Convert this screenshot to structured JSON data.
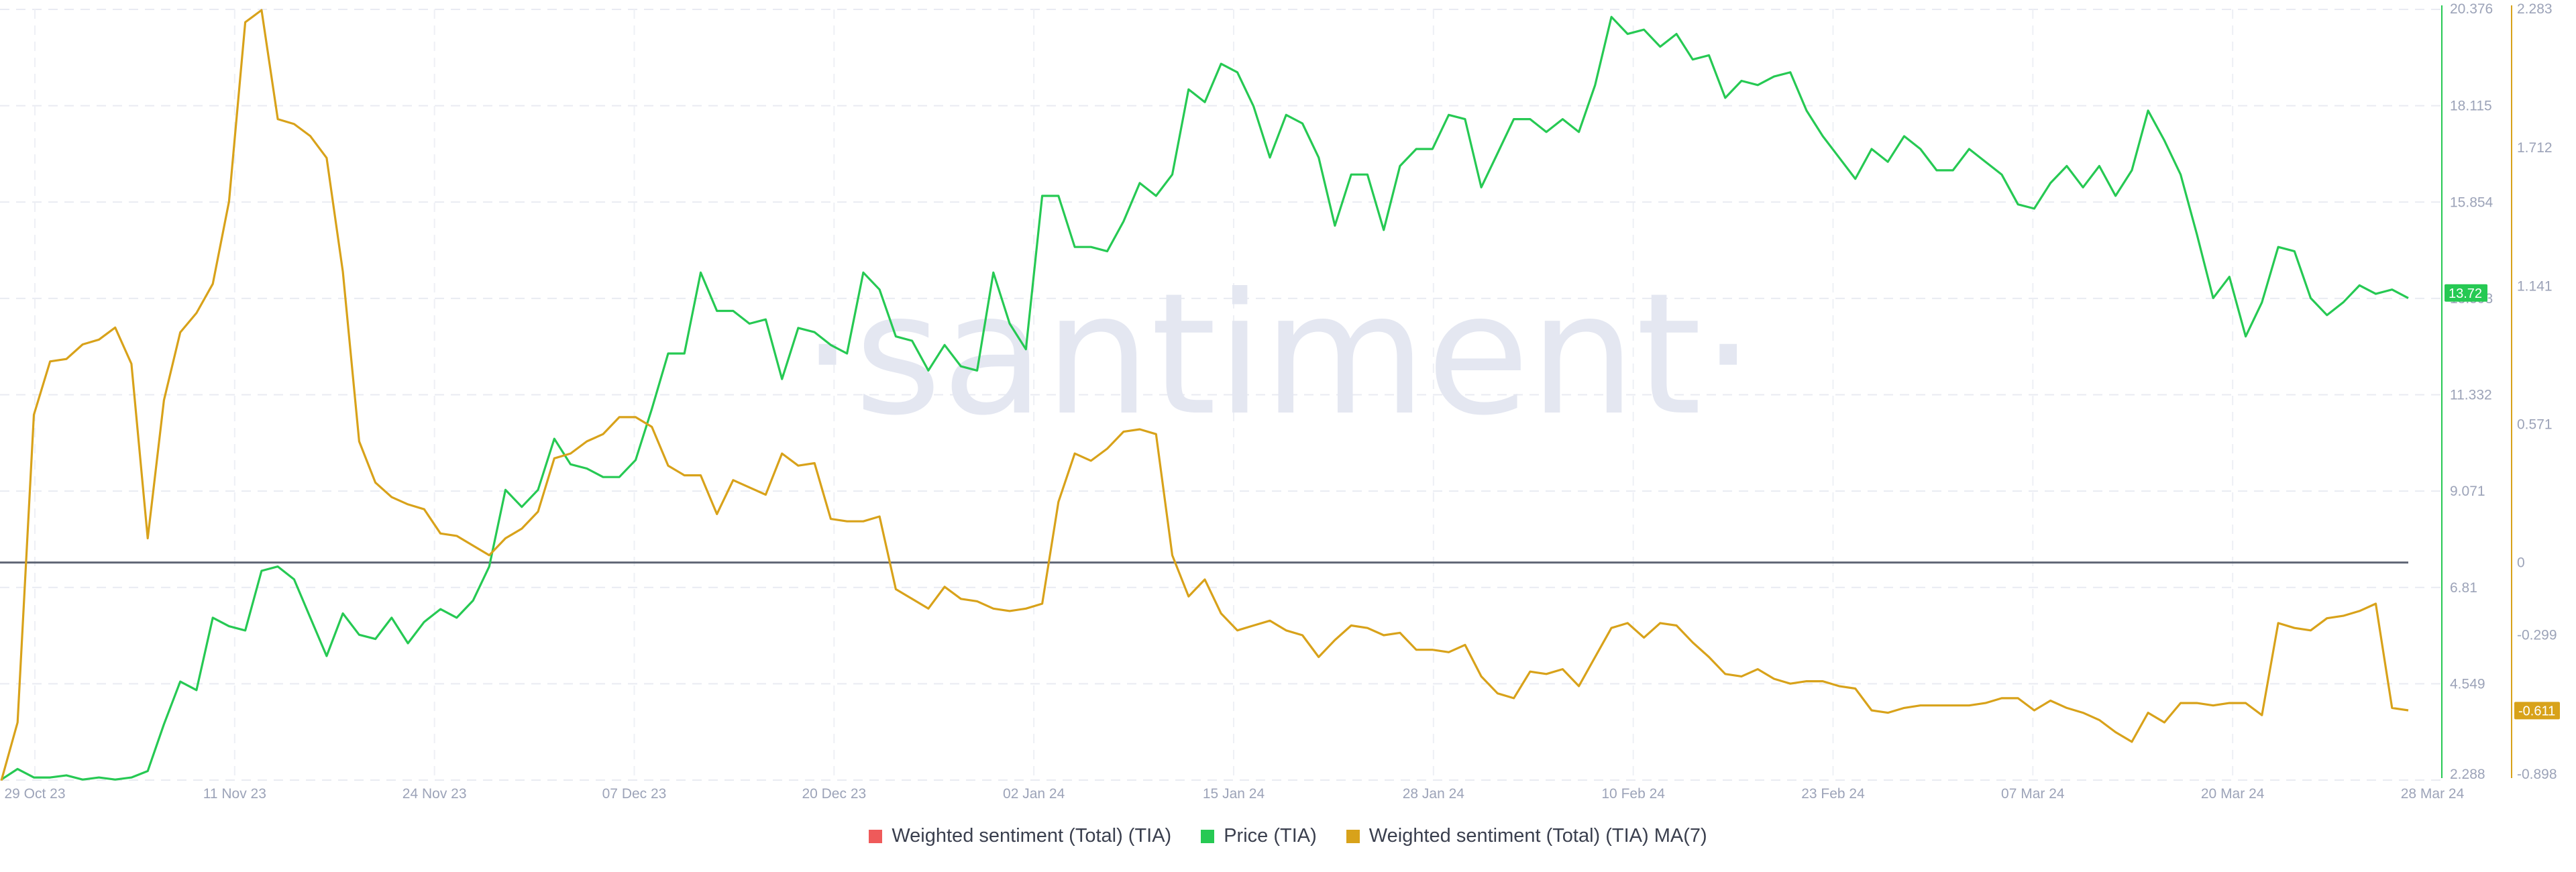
{
  "watermark": "·santiment·",
  "legend": [
    {
      "label": "Weighted sentiment (Total) (TIA)",
      "color": "#ef5a5a"
    },
    {
      "label": "Price (TIA)",
      "color": "#26c953"
    },
    {
      "label": "Weighted sentiment (Total) (TIA) MA(7)",
      "color": "#d8a21a"
    }
  ],
  "chart_data": {
    "type": "line",
    "x_ticks": [
      "29 Oct 23",
      "11 Nov 23",
      "24 Nov 23",
      "07 Dec 23",
      "20 Dec 23",
      "02 Jan 24",
      "15 Jan 24",
      "28 Jan 24",
      "10 Feb 24",
      "23 Feb 24",
      "07 Mar 24",
      "20 Mar 24",
      "28 Mar 24"
    ],
    "x_range": [
      "2023-10-29",
      "2024-03-28"
    ],
    "price_axis": {
      "ticks": [
        "20.376",
        "18.115",
        "15.854",
        "13.593",
        "11.332",
        "9.071",
        "6.81",
        "4.549",
        "2.288"
      ],
      "range": [
        2.288,
        20.376
      ]
    },
    "sentiment_axis": {
      "ticks": [
        "2.283",
        "1.712",
        "1.141",
        "0.571",
        "0",
        "-0.299",
        "-0.611",
        "-0.898"
      ],
      "range": [
        -0.898,
        2.283
      ]
    },
    "last_values": {
      "price": "13.72",
      "sentiment_ma": "-0.611"
    },
    "series": [
      {
        "name": "Price (TIA)",
        "color": "#26c953",
        "axis": "price",
        "values": [
          2.3,
          2.55,
          2.35,
          2.35,
          2.4,
          2.3,
          2.35,
          2.3,
          2.35,
          2.5,
          3.6,
          4.6,
          4.4,
          6.1,
          5.9,
          5.8,
          7.2,
          7.3,
          7.0,
          6.1,
          5.2,
          6.2,
          5.7,
          5.6,
          6.1,
          5.5,
          6.0,
          6.3,
          6.1,
          6.5,
          7.3,
          9.1,
          8.7,
          9.1,
          10.3,
          9.7,
          9.6,
          9.4,
          9.4,
          9.8,
          11.0,
          12.3,
          12.3,
          14.2,
          13.3,
          13.3,
          13.0,
          13.1,
          11.7,
          12.9,
          12.8,
          12.5,
          12.3,
          14.2,
          13.8,
          12.7,
          12.6,
          11.9,
          12.5,
          12.0,
          11.9,
          14.2,
          13.0,
          12.4,
          16.0,
          16.0,
          14.8,
          14.8,
          14.7,
          15.4,
          16.3,
          16.0,
          16.5,
          18.5,
          18.2,
          19.1,
          18.9,
          18.1,
          16.9,
          17.9,
          17.7,
          16.9,
          15.3,
          16.5,
          16.5,
          15.2,
          16.7,
          17.1,
          17.1,
          17.9,
          17.8,
          16.2,
          17.0,
          17.8,
          17.8,
          17.5,
          17.8,
          17.5,
          18.6,
          20.2,
          19.8,
          19.9,
          19.5,
          19.8,
          19.2,
          19.3,
          18.3,
          18.7,
          18.6,
          18.8,
          18.9,
          18.0,
          17.4,
          16.9,
          16.4,
          17.1,
          16.8,
          17.4,
          17.1,
          16.6,
          16.6,
          17.1,
          16.8,
          16.5,
          15.8,
          15.7,
          16.3,
          16.7,
          16.2,
          16.7,
          16.0,
          16.6,
          18.0,
          17.3,
          16.5,
          15.1,
          13.6,
          14.1,
          12.7,
          13.5,
          14.8,
          14.7,
          13.6,
          13.2,
          13.5,
          13.9,
          13.7,
          13.8,
          13.6
        ]
      },
      {
        "name": "Weighted sentiment (Total) (TIA) MA(7)",
        "color": "#d8a21a",
        "axis": "sentiment",
        "values": [
          -0.9,
          -0.66,
          0.61,
          0.83,
          0.84,
          0.9,
          0.92,
          0.97,
          0.82,
          0.1,
          0.67,
          0.95,
          1.03,
          1.15,
          1.49,
          2.23,
          2.28,
          1.83,
          1.81,
          1.76,
          1.67,
          1.2,
          0.5,
          0.33,
          0.27,
          0.24,
          0.22,
          0.12,
          0.11,
          0.07,
          0.03,
          0.1,
          0.14,
          0.21,
          0.43,
          0.45,
          0.5,
          0.53,
          0.6,
          0.6,
          0.56,
          0.4,
          0.36,
          0.36,
          0.2,
          0.34,
          0.31,
          0.28,
          0.45,
          0.4,
          0.41,
          0.18,
          0.17,
          0.17,
          0.19,
          -0.11,
          -0.15,
          -0.19,
          -0.1,
          -0.15,
          -0.16,
          -0.19,
          -0.2,
          -0.19,
          -0.17,
          0.25,
          0.45,
          0.42,
          0.47,
          0.54,
          0.55,
          0.53,
          0.03,
          -0.14,
          -0.07,
          -0.21,
          -0.28,
          -0.26,
          -0.24,
          -0.28,
          -0.3,
          -0.39,
          -0.32,
          -0.26,
          -0.27,
          -0.3,
          -0.29,
          -0.36,
          -0.36,
          -0.37,
          -0.34,
          -0.47,
          -0.54,
          -0.56,
          -0.45,
          -0.46,
          -0.44,
          -0.51,
          -0.39,
          -0.27,
          -0.25,
          -0.31,
          -0.25,
          -0.26,
          -0.33,
          -0.39,
          -0.46,
          -0.47,
          -0.44,
          -0.48,
          -0.5,
          -0.49,
          -0.49,
          -0.51,
          -0.52,
          -0.61,
          -0.62,
          -0.6,
          -0.59,
          -0.59,
          -0.59,
          -0.59,
          -0.58,
          -0.56,
          -0.56,
          -0.61,
          -0.57,
          -0.6,
          -0.62,
          -0.65,
          -0.7,
          -0.74,
          -0.62,
          -0.66,
          -0.58,
          -0.58,
          -0.59,
          -0.58,
          -0.58,
          -0.63,
          -0.25,
          -0.27,
          -0.28,
          -0.23,
          -0.22,
          -0.2,
          -0.17,
          -0.6,
          -0.61
        ]
      }
    ],
    "baseline_line": {
      "axis": "sentiment",
      "value": 0
    },
    "grid": true
  }
}
